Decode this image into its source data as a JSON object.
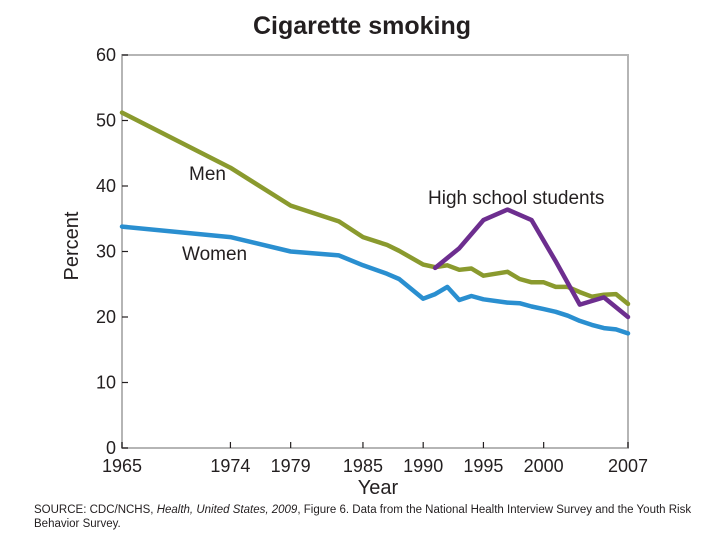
{
  "chart_data": {
    "type": "line",
    "title": "Cigarette smoking",
    "xlabel": "Year",
    "ylabel": "Percent",
    "xlim": [
      1965,
      2007
    ],
    "ylim": [
      0,
      60
    ],
    "x_ticks": [
      1965,
      1974,
      1979,
      1985,
      1990,
      1995,
      2000,
      2007
    ],
    "y_ticks": [
      0,
      10,
      20,
      30,
      40,
      50,
      60
    ],
    "grid": false,
    "legend": "inline labels",
    "series": [
      {
        "name": "Men",
        "color": "#8a9a2e",
        "x": [
          1965,
          1974,
          1979,
          1983,
          1985,
          1987,
          1988,
          1990,
          1991,
          1992,
          1993,
          1994,
          1995,
          1997,
          1998,
          1999,
          2000,
          2001,
          2002,
          2003,
          2004,
          2005,
          2006,
          2007
        ],
        "y": [
          51.2,
          42.8,
          37.0,
          34.6,
          32.2,
          31.0,
          30.1,
          28.0,
          27.6,
          27.9,
          27.2,
          27.4,
          26.3,
          26.9,
          25.8,
          25.3,
          25.3,
          24.6,
          24.6,
          23.8,
          23.1,
          23.4,
          23.5,
          22.0
        ]
      },
      {
        "name": "Women",
        "color": "#2a8fd0",
        "x": [
          1965,
          1974,
          1979,
          1983,
          1985,
          1987,
          1988,
          1990,
          1991,
          1992,
          1993,
          1994,
          1995,
          1997,
          1998,
          1999,
          2000,
          2001,
          2002,
          2003,
          2004,
          2005,
          2006,
          2007
        ],
        "y": [
          33.8,
          32.2,
          30.0,
          29.4,
          27.9,
          26.6,
          25.8,
          22.8,
          23.5,
          24.6,
          22.6,
          23.2,
          22.7,
          22.2,
          22.1,
          21.6,
          21.2,
          20.8,
          20.2,
          19.4,
          18.8,
          18.3,
          18.1,
          17.5
        ]
      },
      {
        "name": "High school students",
        "color": "#6d2e8f",
        "x": [
          1991,
          1993,
          1995,
          1997,
          1999,
          2001,
          2003,
          2005,
          2007
        ],
        "y": [
          27.5,
          30.5,
          34.8,
          36.4,
          34.8,
          28.5,
          21.9,
          23.0,
          20.0
        ]
      }
    ]
  },
  "source": {
    "prefix": "SOURCE: CDC/NCHS, ",
    "italic": "Health, United States, 2009",
    "suffix": ", Figure 6. Data from the National Health Interview Survey and the Youth Risk Behavior Survey."
  }
}
